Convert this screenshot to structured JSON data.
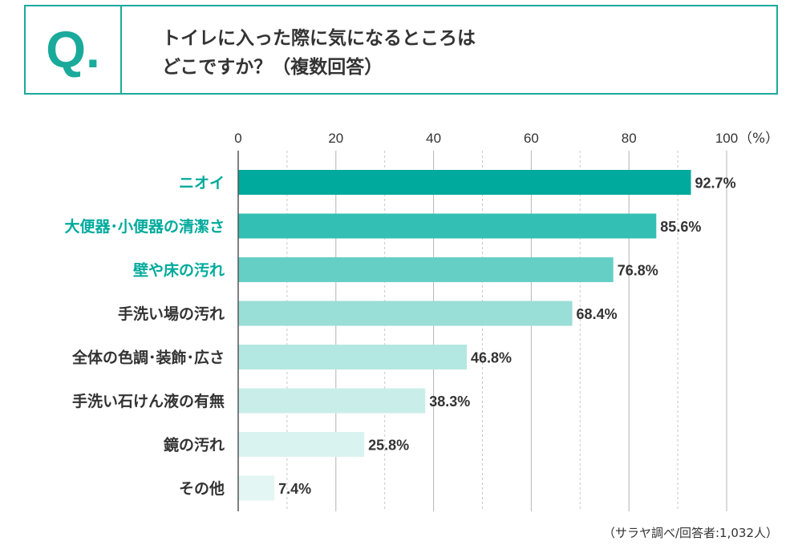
{
  "question": {
    "mark": "Q.",
    "line1": "トイレに入った際に気になるところは",
    "line2": "どこですか？（複数回答）"
  },
  "chart_data": {
    "type": "bar",
    "orientation": "horizontal",
    "categories": [
      "ニオイ",
      "大便器･小便器の清潔さ",
      "壁や床の汚れ",
      "手洗い場の汚れ",
      "全体の色調･装飾･広さ",
      "手洗い石けん液の有無",
      "鏡の汚れ",
      "その他"
    ],
    "values": [
      92.7,
      85.6,
      76.8,
      68.4,
      46.8,
      38.3,
      25.8,
      7.4
    ],
    "value_labels": [
      "92.7%",
      "85.6%",
      "76.8%",
      "68.4%",
      "46.8%",
      "38.3%",
      "25.8%",
      "7.4%"
    ],
    "bar_colors": [
      "#00aa9c",
      "#33bfb3",
      "#66cfc5",
      "#99ded7",
      "#b3e7e2",
      "#c9eeea",
      "#d9f3f0",
      "#e3f6f3"
    ],
    "highlight_categories": [
      0,
      1,
      2
    ],
    "highlight_color": "#00aa9c",
    "label_color": "#333333",
    "xlim": [
      0,
      100
    ],
    "xticks": [
      0,
      20,
      40,
      60,
      80,
      100
    ],
    "xtick_labels": [
      "0",
      "20",
      "40",
      "60",
      "80",
      "100"
    ],
    "unit_label": "（%）",
    "grid": true
  },
  "footnote": "（サラヤ調べ/回答者:1,032人）"
}
